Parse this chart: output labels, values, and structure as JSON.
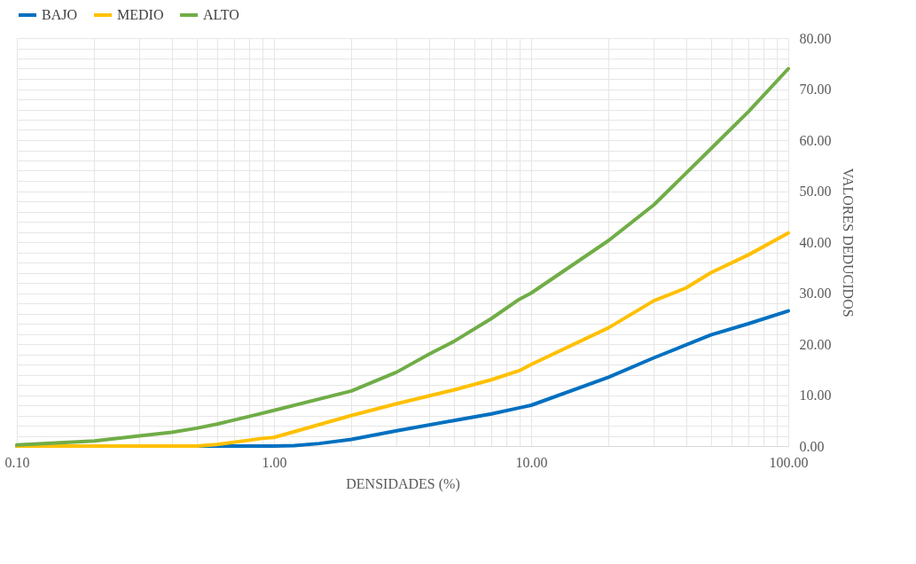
{
  "chart_data": {
    "type": "line",
    "xlabel": "DENSIDADES (%)",
    "ylabel": "VALORES  DEDUCIDOS",
    "log": "x",
    "grid": true,
    "legend": "top",
    "xlim": [
      0.1,
      100
    ],
    "ylim": [
      0,
      80
    ],
    "xticks": [
      {
        "value": 0.1,
        "label": "0.10"
      },
      {
        "value": 0.2,
        "label": null
      },
      {
        "value": 0.3,
        "label": null
      },
      {
        "value": 0.4,
        "label": null
      },
      {
        "value": 0.5,
        "label": null
      },
      {
        "value": 0.6,
        "label": null
      },
      {
        "value": 0.7,
        "label": null
      },
      {
        "value": 0.8,
        "label": null
      },
      {
        "value": 0.9,
        "label": null
      },
      {
        "value": 1,
        "label": "1.00"
      },
      {
        "value": 2,
        "label": null
      },
      {
        "value": 3,
        "label": null
      },
      {
        "value": 4,
        "label": null
      },
      {
        "value": 5,
        "label": null
      },
      {
        "value": 6,
        "label": null
      },
      {
        "value": 7,
        "label": null
      },
      {
        "value": 8,
        "label": null
      },
      {
        "value": 9,
        "label": null
      },
      {
        "value": 10,
        "label": "10.00"
      },
      {
        "value": 20,
        "label": null
      },
      {
        "value": 30,
        "label": null
      },
      {
        "value": 40,
        "label": null
      },
      {
        "value": 50,
        "label": null
      },
      {
        "value": 60,
        "label": null
      },
      {
        "value": 70,
        "label": null
      },
      {
        "value": 80,
        "label": null
      },
      {
        "value": 90,
        "label": null
      },
      {
        "value": 100,
        "label": "100.00"
      }
    ],
    "yticks": [
      {
        "value": 0,
        "label": "0.00"
      },
      {
        "value": 2,
        "label": null
      },
      {
        "value": 4,
        "label": null
      },
      {
        "value": 6,
        "label": null
      },
      {
        "value": 8,
        "label": null
      },
      {
        "value": 10,
        "label": "10.00"
      },
      {
        "value": 12,
        "label": null
      },
      {
        "value": 14,
        "label": null
      },
      {
        "value": 16,
        "label": null
      },
      {
        "value": 18,
        "label": null
      },
      {
        "value": 20,
        "label": "20.00"
      },
      {
        "value": 22,
        "label": null
      },
      {
        "value": 24,
        "label": null
      },
      {
        "value": 26,
        "label": null
      },
      {
        "value": 28,
        "label": null
      },
      {
        "value": 30,
        "label": "30.00"
      },
      {
        "value": 32,
        "label": null
      },
      {
        "value": 34,
        "label": null
      },
      {
        "value": 36,
        "label": null
      },
      {
        "value": 38,
        "label": null
      },
      {
        "value": 40,
        "label": "40.00"
      },
      {
        "value": 42,
        "label": null
      },
      {
        "value": 44,
        "label": null
      },
      {
        "value": 46,
        "label": null
      },
      {
        "value": 48,
        "label": null
      },
      {
        "value": 50,
        "label": "50.00"
      },
      {
        "value": 52,
        "label": null
      },
      {
        "value": 54,
        "label": null
      },
      {
        "value": 56,
        "label": null
      },
      {
        "value": 58,
        "label": null
      },
      {
        "value": 60,
        "label": "60.00"
      },
      {
        "value": 62,
        "label": null
      },
      {
        "value": 64,
        "label": null
      },
      {
        "value": 66,
        "label": null
      },
      {
        "value": 68,
        "label": null
      },
      {
        "value": 70,
        "label": "70.00"
      },
      {
        "value": 72,
        "label": null
      },
      {
        "value": 74,
        "label": null
      },
      {
        "value": 76,
        "label": null
      },
      {
        "value": 78,
        "label": null
      },
      {
        "value": 80,
        "label": "80.00"
      }
    ],
    "series": [
      {
        "name": "BAJO",
        "color": "#0070c0",
        "x": [
          0.1,
          0.5,
          1,
          1.2,
          1.5,
          2,
          3,
          5,
          7,
          9,
          10,
          20,
          30,
          50,
          70,
          100
        ],
        "values": [
          0,
          0,
          0,
          0.1,
          0.5,
          1.3,
          3,
          5,
          6.3,
          7.5,
          8,
          13.5,
          17.3,
          21.8,
          24,
          26.5
        ]
      },
      {
        "name": "MEDIO",
        "color": "#ffc000",
        "x": [
          0.1,
          0.5,
          0.6,
          0.9,
          1,
          2,
          3,
          5,
          7,
          9,
          10,
          20,
          30,
          40,
          50,
          70,
          100
        ],
        "values": [
          0,
          0,
          0.3,
          1.5,
          1.7,
          6,
          8.3,
          11,
          13,
          14.8,
          16,
          23.2,
          28.5,
          31,
          34,
          37.5,
          41.8
        ]
      },
      {
        "name": "ALTO",
        "color": "#70ad47",
        "x": [
          0.1,
          0.2,
          0.3,
          0.4,
          0.5,
          0.6,
          0.8,
          1,
          2,
          3,
          4,
          5,
          7,
          9,
          10,
          20,
          30,
          50,
          70,
          100
        ],
        "values": [
          0.2,
          1,
          2,
          2.7,
          3.5,
          4.3,
          5.8,
          7,
          10.8,
          14.5,
          18,
          20.5,
          25,
          28.8,
          30,
          40.3,
          47.3,
          58.3,
          65.6,
          74
        ]
      }
    ]
  }
}
